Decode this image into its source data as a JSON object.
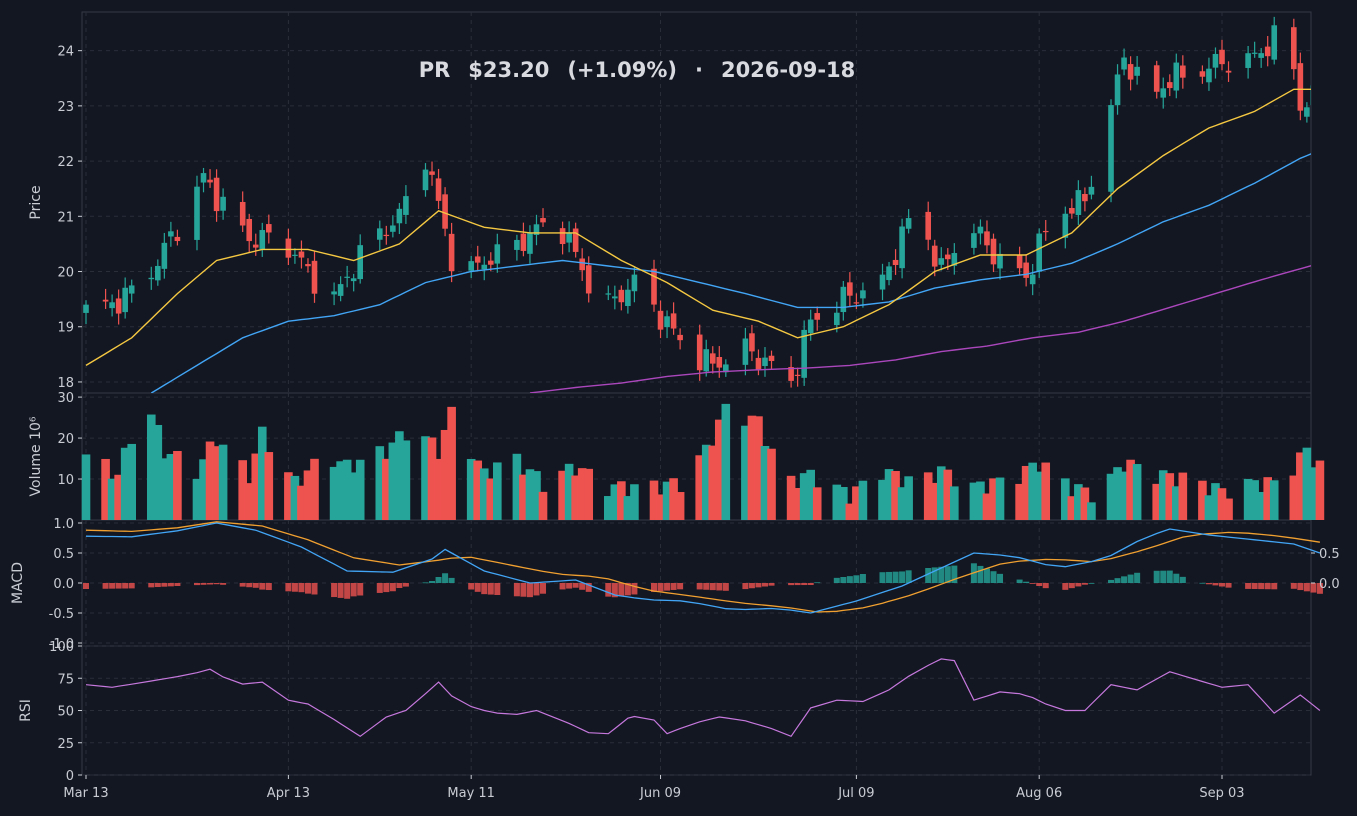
{
  "header": {
    "ticker": "PR",
    "price": "$23.20",
    "change": "(+1.09%)",
    "separator": "·",
    "date": "2026-09-18"
  },
  "colors": {
    "background": "#131722",
    "grid": "#2a2e39",
    "axis_text": "#c9ccd3",
    "up": "#26a69a",
    "down": "#ef5350",
    "ma_short": "#f5c842",
    "ma_mid": "#42a5f5",
    "ma_long": "#ab47bc",
    "macd_line": "#42a5f5",
    "signal_line": "#f0a030",
    "rsi": "#c678dd"
  },
  "chart_data": {
    "type": "candlestick",
    "panels": [
      {
        "name": "price",
        "ylabel": "Price",
        "yticks": [
          18,
          19,
          20,
          21,
          22,
          23,
          24
        ],
        "ylim": [
          17.8,
          24.7
        ]
      },
      {
        "name": "volume",
        "ylabel": "Volume  10⁶",
        "yticks": [
          10,
          20,
          30
        ],
        "ylim": [
          0,
          31
        ]
      },
      {
        "name": "macd",
        "ylabel": "MACD",
        "yticks_left": [
          -1.0,
          -0.5,
          0.0,
          0.5,
          1.0
        ],
        "yticks_right": [
          0.0,
          0.5
        ],
        "ylim": [
          -1.05,
          1.05
        ]
      },
      {
        "name": "rsi",
        "ylabel": "RSI",
        "yticks": [
          0,
          25,
          50,
          75,
          100
        ],
        "ylim": [
          0,
          100
        ]
      }
    ],
    "x_ticks": [
      {
        "date": "2026-03-13",
        "label": "Mar 13"
      },
      {
        "date": "2026-04-13",
        "label": "Apr 13"
      },
      {
        "date": "2026-05-11",
        "label": "May 11"
      },
      {
        "date": "2026-06-09",
        "label": "Jun 09"
      },
      {
        "date": "2026-07-09",
        "label": "Jul 09"
      },
      {
        "date": "2026-08-06",
        "label": "Aug 06"
      },
      {
        "date": "2026-09-03",
        "label": "Sep 03"
      }
    ],
    "close_keypoints": [
      [
        "2026-03-13",
        19.3
      ],
      [
        "2026-03-17",
        19.4
      ],
      [
        "2026-03-22",
        19.8
      ],
      [
        "2026-03-27",
        20.8
      ],
      [
        "2026-03-31",
        21.7
      ],
      [
        "2026-04-03",
        21.2
      ],
      [
        "2026-04-07",
        20.6
      ],
      [
        "2026-04-12",
        20.6
      ],
      [
        "2026-04-16",
        20.0
      ],
      [
        "2026-04-20",
        19.5
      ],
      [
        "2026-04-25",
        20.5
      ],
      [
        "2026-04-30",
        21.0
      ],
      [
        "2026-05-04",
        22.1
      ],
      [
        "2026-05-06",
        21.2
      ],
      [
        "2026-05-09",
        19.8
      ],
      [
        "2026-05-13",
        20.2
      ],
      [
        "2026-05-18",
        20.5
      ],
      [
        "2026-05-24",
        21.0
      ],
      [
        "2026-05-27",
        20.3
      ],
      [
        "2026-05-31",
        19.3
      ],
      [
        "2026-06-05",
        19.8
      ],
      [
        "2026-06-09",
        19.2
      ],
      [
        "2026-06-13",
        18.6
      ],
      [
        "2026-06-17",
        18.3
      ],
      [
        "2026-06-22",
        18.6
      ],
      [
        "2026-06-27",
        18.2
      ],
      [
        "2026-06-29",
        18.0
      ],
      [
        "2026-07-02",
        19.1
      ],
      [
        "2026-07-07",
        19.5
      ],
      [
        "2026-07-13",
        19.8
      ],
      [
        "2026-07-18",
        21.2
      ],
      [
        "2026-07-22",
        20.0
      ],
      [
        "2026-07-26",
        20.9
      ],
      [
        "2026-07-31",
        20.2
      ],
      [
        "2026-08-04",
        19.9
      ],
      [
        "2026-08-08",
        21.0
      ],
      [
        "2026-08-13",
        21.3
      ],
      [
        "2026-08-16",
        22.5
      ],
      [
        "2026-08-19",
        23.9
      ],
      [
        "2026-08-23",
        23.1
      ],
      [
        "2026-08-26",
        23.5
      ],
      [
        "2026-08-30",
        23.6
      ],
      [
        "2026-09-03",
        23.8
      ],
      [
        "2026-09-07",
        23.8
      ],
      [
        "2026-09-10",
        24.1
      ],
      [
        "2026-09-13",
        24.4
      ],
      [
        "2026-09-15",
        23.0
      ],
      [
        "2026-09-18",
        23.2
      ]
    ],
    "ma_short_keypoints": [
      [
        "2026-03-13",
        18.3
      ],
      [
        "2026-03-20",
        18.8
      ],
      [
        "2026-03-27",
        19.6
      ],
      [
        "2026-04-02",
        20.2
      ],
      [
        "2026-04-09",
        20.4
      ],
      [
        "2026-04-16",
        20.4
      ],
      [
        "2026-04-23",
        20.2
      ],
      [
        "2026-04-30",
        20.5
      ],
      [
        "2026-05-06",
        21.1
      ],
      [
        "2026-05-13",
        20.8
      ],
      [
        "2026-05-20",
        20.7
      ],
      [
        "2026-05-27",
        20.7
      ],
      [
        "2026-06-03",
        20.2
      ],
      [
        "2026-06-10",
        19.8
      ],
      [
        "2026-06-17",
        19.3
      ],
      [
        "2026-06-24",
        19.1
      ],
      [
        "2026-06-30",
        18.8
      ],
      [
        "2026-07-07",
        19.0
      ],
      [
        "2026-07-14",
        19.4
      ],
      [
        "2026-07-21",
        20.0
      ],
      [
        "2026-07-28",
        20.3
      ],
      [
        "2026-08-04",
        20.3
      ],
      [
        "2026-08-11",
        20.7
      ],
      [
        "2026-08-18",
        21.5
      ],
      [
        "2026-08-25",
        22.1
      ],
      [
        "2026-09-01",
        22.6
      ],
      [
        "2026-09-08",
        22.9
      ],
      [
        "2026-09-14",
        23.3
      ],
      [
        "2026-09-18",
        23.3
      ]
    ],
    "ma_mid_keypoints": [
      [
        "2026-03-23",
        17.8
      ],
      [
        "2026-03-30",
        18.3
      ],
      [
        "2026-04-06",
        18.8
      ],
      [
        "2026-04-13",
        19.1
      ],
      [
        "2026-04-20",
        19.2
      ],
      [
        "2026-04-27",
        19.4
      ],
      [
        "2026-05-04",
        19.8
      ],
      [
        "2026-05-11",
        20.0
      ],
      [
        "2026-05-18",
        20.1
      ],
      [
        "2026-05-25",
        20.2
      ],
      [
        "2026-06-01",
        20.1
      ],
      [
        "2026-06-08",
        20.0
      ],
      [
        "2026-06-15",
        19.8
      ],
      [
        "2026-06-22",
        19.6
      ],
      [
        "2026-06-30",
        19.35
      ],
      [
        "2026-07-07",
        19.35
      ],
      [
        "2026-07-14",
        19.45
      ],
      [
        "2026-07-21",
        19.7
      ],
      [
        "2026-07-28",
        19.85
      ],
      [
        "2026-08-04",
        19.95
      ],
      [
        "2026-08-11",
        20.15
      ],
      [
        "2026-08-18",
        20.5
      ],
      [
        "2026-08-25",
        20.9
      ],
      [
        "2026-09-01",
        21.2
      ],
      [
        "2026-09-08",
        21.6
      ],
      [
        "2026-09-15",
        22.05
      ],
      [
        "2026-09-18",
        22.2
      ]
    ],
    "ma_long_keypoints": [
      [
        "2026-05-20",
        17.8
      ],
      [
        "2026-05-27",
        17.9
      ],
      [
        "2026-06-03",
        17.98
      ],
      [
        "2026-06-10",
        18.1
      ],
      [
        "2026-06-17",
        18.18
      ],
      [
        "2026-06-24",
        18.22
      ],
      [
        "2026-07-01",
        18.25
      ],
      [
        "2026-07-08",
        18.3
      ],
      [
        "2026-07-15",
        18.4
      ],
      [
        "2026-07-22",
        18.55
      ],
      [
        "2026-07-29",
        18.65
      ],
      [
        "2026-08-05",
        18.8
      ],
      [
        "2026-08-12",
        18.9
      ],
      [
        "2026-08-19",
        19.1
      ],
      [
        "2026-08-26",
        19.35
      ],
      [
        "2026-09-02",
        19.6
      ],
      [
        "2026-09-09",
        19.85
      ],
      [
        "2026-09-18",
        20.15
      ]
    ],
    "volume_keypoints": [
      [
        "2026-03-13",
        16
      ],
      [
        "2026-03-18",
        11
      ],
      [
        "2026-03-22",
        30
      ],
      [
        "2026-03-25",
        17
      ],
      [
        "2026-03-30",
        12
      ],
      [
        "2026-04-02",
        20
      ],
      [
        "2026-04-07",
        11
      ],
      [
        "2026-04-09",
        21
      ],
      [
        "2026-04-14",
        9
      ],
      [
        "2026-04-19",
        16
      ],
      [
        "2026-04-22",
        13
      ],
      [
        "2026-04-28",
        17
      ],
      [
        "2026-05-02",
        23
      ],
      [
        "2026-05-06",
        17
      ],
      [
        "2026-05-08",
        26
      ],
      [
        "2026-05-13",
        11
      ],
      [
        "2026-05-17",
        16
      ],
      [
        "2026-05-22",
        9
      ],
      [
        "2026-05-27",
        13
      ],
      [
        "2026-06-01",
        8
      ],
      [
        "2026-06-07",
        8
      ],
      [
        "2026-06-12",
        9
      ],
      [
        "2026-06-16",
        17
      ],
      [
        "2026-06-19",
        27
      ],
      [
        "2026-06-24",
        24
      ],
      [
        "2026-06-28",
        9
      ],
      [
        "2026-07-02",
        11
      ],
      [
        "2026-07-08",
        6
      ],
      [
        "2026-07-13",
        12
      ],
      [
        "2026-07-18",
        9
      ],
      [
        "2026-07-22",
        12
      ],
      [
        "2026-07-27",
        8
      ],
      [
        "2026-08-02",
        10
      ],
      [
        "2026-08-06",
        14
      ],
      [
        "2026-08-11",
        8
      ],
      [
        "2026-08-15",
        6
      ],
      [
        "2026-08-19",
        14
      ],
      [
        "2026-08-24",
        11
      ],
      [
        "2026-08-29",
        10
      ],
      [
        "2026-09-03",
        7
      ],
      [
        "2026-09-08",
        9
      ],
      [
        "2026-09-12",
        9
      ],
      [
        "2026-09-16",
        17
      ],
      [
        "2026-09-18",
        13
      ]
    ],
    "macd_keypoints": [
      [
        "2026-03-13",
        0.78
      ],
      [
        "2026-03-20",
        0.77
      ],
      [
        "2026-03-27",
        0.87
      ],
      [
        "2026-04-02",
        1.0
      ],
      [
        "2026-04-08",
        0.88
      ],
      [
        "2026-04-15",
        0.6
      ],
      [
        "2026-04-22",
        0.2
      ],
      [
        "2026-04-29",
        0.18
      ],
      [
        "2026-05-05",
        0.4
      ],
      [
        "2026-05-07",
        0.56
      ],
      [
        "2026-05-13",
        0.2
      ],
      [
        "2026-05-20",
        0.0
      ],
      [
        "2026-05-27",
        0.05
      ],
      [
        "2026-06-02",
        -0.2
      ],
      [
        "2026-06-07",
        -0.28
      ],
      [
        "2026-06-13",
        -0.3
      ],
      [
        "2026-06-20",
        -0.45
      ],
      [
        "2026-06-27",
        -0.42
      ],
      [
        "2026-07-02",
        -0.5
      ],
      [
        "2026-07-09",
        -0.3
      ],
      [
        "2026-07-16",
        -0.05
      ],
      [
        "2026-07-23",
        0.3
      ],
      [
        "2026-07-27",
        0.5
      ],
      [
        "2026-08-02",
        0.45
      ],
      [
        "2026-08-09",
        0.25
      ],
      [
        "2026-08-16",
        0.4
      ],
      [
        "2026-08-22",
        0.75
      ],
      [
        "2026-08-26",
        0.9
      ],
      [
        "2026-09-01",
        0.8
      ],
      [
        "2026-09-08",
        0.72
      ],
      [
        "2026-09-14",
        0.65
      ],
      [
        "2026-09-18",
        0.5
      ]
    ],
    "signal_keypoints": [
      [
        "2026-03-13",
        0.88
      ],
      [
        "2026-03-20",
        0.86
      ],
      [
        "2026-03-27",
        0.92
      ],
      [
        "2026-04-02",
        1.02
      ],
      [
        "2026-04-09",
        0.95
      ],
      [
        "2026-04-16",
        0.72
      ],
      [
        "2026-04-23",
        0.42
      ],
      [
        "2026-04-30",
        0.3
      ],
      [
        "2026-05-06",
        0.38
      ],
      [
        "2026-05-10",
        0.45
      ],
      [
        "2026-05-17",
        0.3
      ],
      [
        "2026-05-24",
        0.15
      ],
      [
        "2026-05-31",
        0.1
      ],
      [
        "2026-06-07",
        -0.12
      ],
      [
        "2026-06-14",
        -0.22
      ],
      [
        "2026-06-21",
        -0.33
      ],
      [
        "2026-06-28",
        -0.4
      ],
      [
        "2026-07-04",
        -0.5
      ],
      [
        "2026-07-11",
        -0.4
      ],
      [
        "2026-07-18",
        -0.18
      ],
      [
        "2026-07-25",
        0.1
      ],
      [
        "2026-08-01",
        0.35
      ],
      [
        "2026-08-08",
        0.4
      ],
      [
        "2026-08-15",
        0.35
      ],
      [
        "2026-08-22",
        0.55
      ],
      [
        "2026-08-29",
        0.8
      ],
      [
        "2026-09-05",
        0.85
      ],
      [
        "2026-09-12",
        0.78
      ],
      [
        "2026-09-18",
        0.68
      ]
    ],
    "rsi_keypoints": [
      [
        "2026-03-13",
        70
      ],
      [
        "2026-03-17",
        68
      ],
      [
        "2026-03-22",
        72
      ],
      [
        "2026-03-29",
        78
      ],
      [
        "2026-04-01",
        82
      ],
      [
        "2026-04-05",
        70
      ],
      [
        "2026-04-09",
        72
      ],
      [
        "2026-04-13",
        58
      ],
      [
        "2026-04-16",
        55
      ],
      [
        "2026-04-20",
        43
      ],
      [
        "2026-04-24",
        30
      ],
      [
        "2026-04-28",
        45
      ],
      [
        "2026-05-01",
        50
      ],
      [
        "2026-05-04",
        63
      ],
      [
        "2026-05-06",
        72
      ],
      [
        "2026-05-09",
        56
      ],
      [
        "2026-05-13",
        50
      ],
      [
        "2026-05-17",
        46
      ],
      [
        "2026-05-21",
        50
      ],
      [
        "2026-05-26",
        40
      ],
      [
        "2026-05-31",
        28
      ],
      [
        "2026-06-04",
        44
      ],
      [
        "2026-06-07",
        48
      ],
      [
        "2026-06-10",
        32
      ],
      [
        "2026-06-14",
        40
      ],
      [
        "2026-06-18",
        45
      ],
      [
        "2026-06-22",
        42
      ],
      [
        "2026-06-26",
        36
      ],
      [
        "2026-06-29",
        30
      ],
      [
        "2026-07-02",
        52
      ],
      [
        "2026-07-06",
        58
      ],
      [
        "2026-07-10",
        57
      ],
      [
        "2026-07-14",
        66
      ],
      [
        "2026-07-18",
        80
      ],
      [
        "2026-07-22",
        90
      ],
      [
        "2026-07-25",
        88
      ],
      [
        "2026-07-27",
        58
      ],
      [
        "2026-08-01",
        66
      ],
      [
        "2026-08-05",
        60
      ],
      [
        "2026-08-09",
        50
      ],
      [
        "2026-08-13",
        50
      ],
      [
        "2026-08-17",
        70
      ],
      [
        "2026-08-21",
        66
      ],
      [
        "2026-08-26",
        80
      ],
      [
        "2026-08-30",
        74
      ],
      [
        "2026-09-03",
        68
      ],
      [
        "2026-09-07",
        70
      ],
      [
        "2026-09-11",
        48
      ],
      [
        "2026-09-15",
        62
      ],
      [
        "2026-09-18",
        50
      ]
    ]
  }
}
